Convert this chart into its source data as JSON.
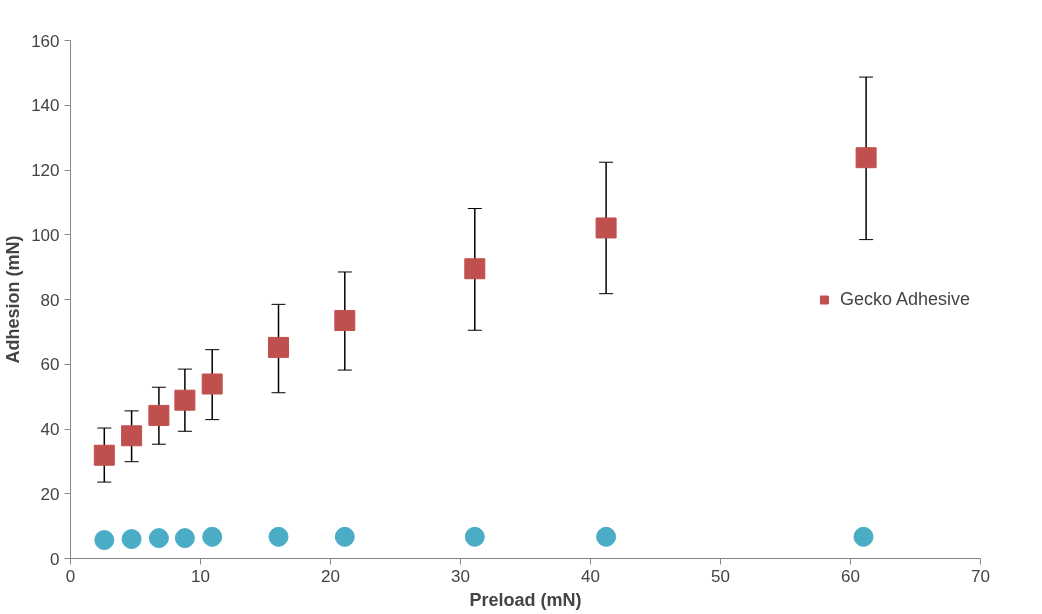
{
  "chart_data": {
    "type": "scatter",
    "xlabel": "Preload (mN)",
    "ylabel": "Adhesion (mN)",
    "xlim": [
      0,
      70
    ],
    "xticks": [
      0,
      10,
      20,
      30,
      40,
      50,
      60,
      70
    ],
    "ylim": [
      0,
      160
    ],
    "yticks": [
      0,
      20,
      40,
      60,
      80,
      100,
      120,
      140,
      160
    ],
    "grid": false,
    "legend": "right",
    "series": [
      {
        "name": "Gecko Adhesive",
        "color": "#c0504d",
        "marker": "square",
        "x": [
          2.6,
          4.7,
          6.8,
          8.8,
          10.9,
          16.0,
          21.1,
          31.1,
          41.2,
          61.2
        ],
        "values": [
          31.9,
          37.9,
          44.2,
          48.9,
          53.9,
          65.2,
          73.5,
          89.5,
          102.1,
          123.8
        ],
        "errors": [
          [
            23.6,
            40.3
          ],
          [
            29.9,
            45.6
          ],
          [
            35.3,
            52.9
          ],
          [
            39.3,
            58.5
          ],
          [
            42.9,
            64.5
          ],
          [
            51.2,
            78.5
          ],
          [
            58.2,
            88.5
          ],
          [
            70.5,
            108.1
          ],
          [
            81.8,
            122.4
          ],
          [
            98.5,
            148.7
          ]
        ]
      },
      {
        "color": "#4bacc6",
        "marker": "circle",
        "x": [
          2.6,
          4.7,
          6.8,
          8.8,
          10.9,
          16.0,
          21.1,
          31.1,
          41.2,
          61.0
        ],
        "values": [
          5.7,
          6.0,
          6.3,
          6.3,
          6.7,
          6.7,
          6.7,
          6.7,
          6.7,
          6.7
        ]
      }
    ]
  }
}
